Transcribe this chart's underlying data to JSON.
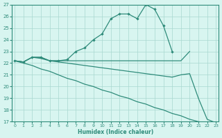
{
  "line1_x": [
    0,
    1,
    2,
    3,
    4,
    5,
    6,
    7,
    8,
    9,
    10,
    11,
    12,
    13,
    14,
    15,
    16,
    17,
    18
  ],
  "line1_y": [
    22.2,
    22.1,
    22.5,
    22.5,
    22.2,
    22.2,
    22.3,
    23.0,
    23.3,
    24.0,
    24.5,
    25.8,
    26.2,
    26.2,
    25.8,
    27.0,
    26.6,
    25.2,
    23.0
  ],
  "line2_x": [
    0,
    1,
    2,
    3,
    4,
    5,
    6,
    7,
    8,
    9,
    10,
    11,
    12,
    13,
    14,
    15,
    16,
    17,
    18,
    19,
    20
  ],
  "line2_y": [
    22.2,
    22.1,
    22.5,
    22.5,
    22.2,
    22.2,
    22.2,
    22.2,
    22.2,
    22.2,
    22.2,
    22.2,
    22.2,
    22.2,
    22.2,
    22.2,
    22.2,
    22.2,
    22.2,
    22.2,
    23.0
  ],
  "line3_x": [
    0,
    1,
    2,
    3,
    4,
    5,
    6,
    7,
    8,
    9,
    10,
    11,
    12,
    13,
    14,
    15,
    16,
    17,
    18,
    19,
    20,
    21,
    22,
    23
  ],
  "line3_y": [
    22.2,
    22.1,
    22.5,
    22.4,
    22.2,
    22.1,
    22.0,
    21.9,
    21.8,
    21.7,
    21.6,
    21.5,
    21.4,
    21.3,
    21.2,
    21.1,
    21.0,
    20.9,
    20.8,
    21.0,
    21.1,
    19.0,
    17.2,
    16.9
  ],
  "line4_x": [
    0,
    1,
    2,
    3,
    4,
    5,
    6,
    7,
    8,
    9,
    10,
    11,
    12,
    13,
    14,
    15,
    16,
    17,
    18,
    19,
    20,
    21,
    22,
    23
  ],
  "line4_y": [
    22.2,
    22.0,
    21.8,
    21.5,
    21.3,
    21.0,
    20.7,
    20.5,
    20.2,
    20.0,
    19.7,
    19.5,
    19.2,
    19.0,
    18.7,
    18.5,
    18.2,
    18.0,
    17.7,
    17.5,
    17.2,
    17.0,
    16.9,
    16.7
  ],
  "color": "#2e8b7a",
  "bg_color": "#d8f5f0",
  "grid_color": "#a8d8d0",
  "ylim": [
    17,
    27
  ],
  "xlim": [
    0,
    23
  ],
  "yticks": [
    17,
    18,
    19,
    20,
    21,
    22,
    23,
    24,
    25,
    26,
    27
  ],
  "xticks": [
    0,
    1,
    2,
    3,
    4,
    5,
    6,
    7,
    8,
    9,
    10,
    11,
    12,
    13,
    14,
    15,
    16,
    17,
    18,
    19,
    20,
    21,
    22,
    23
  ],
  "xlabel": "Humidex (Indice chaleur)"
}
